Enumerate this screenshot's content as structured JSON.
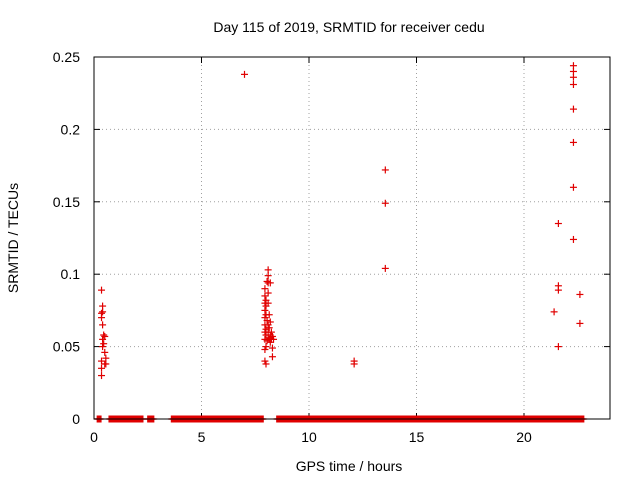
{
  "chart_data": {
    "type": "scatter",
    "title": "Day 115 of 2019, SRMTID for receiver cedu",
    "xlabel": "GPS time / hours",
    "ylabel": "SRMTID / TECUs",
    "xlim": [
      0,
      24
    ],
    "ylim": [
      0,
      0.25
    ],
    "x_ticks": [
      0,
      5,
      10,
      15,
      20
    ],
    "x_tick_labels": [
      "0",
      "5",
      "10",
      "15",
      "20"
    ],
    "y_ticks": [
      0,
      0.05,
      0.1,
      0.15,
      0.2,
      0.25
    ],
    "y_tick_labels": [
      "0",
      "0.05",
      "0.1",
      "0.15",
      "0.2",
      "0.25"
    ],
    "grid": true,
    "marker": "+",
    "series": [
      {
        "color": "#e00000",
        "points": [
          [
            0.35,
            0.089
          ],
          [
            0.35,
            0.073
          ],
          [
            0.35,
            0.07
          ],
          [
            0.35,
            0.04
          ],
          [
            0.35,
            0.035
          ],
          [
            0.35,
            0.03
          ],
          [
            0.4,
            0.078
          ],
          [
            0.4,
            0.074
          ],
          [
            0.4,
            0.065
          ],
          [
            0.4,
            0.055
          ],
          [
            0.4,
            0.05
          ],
          [
            0.45,
            0.058
          ],
          [
            0.45,
            0.052
          ],
          [
            0.5,
            0.057
          ],
          [
            0.5,
            0.046
          ],
          [
            0.5,
            0.038
          ],
          [
            0.55,
            0.042
          ],
          [
            0.55,
            0.038
          ],
          [
            7.0,
            0.238
          ],
          [
            7.95,
            0.09
          ],
          [
            7.95,
            0.085
          ],
          [
            7.95,
            0.08
          ],
          [
            7.95,
            0.075
          ],
          [
            7.95,
            0.07
          ],
          [
            7.95,
            0.065
          ],
          [
            7.95,
            0.06
          ],
          [
            7.95,
            0.055
          ],
          [
            7.95,
            0.048
          ],
          [
            7.95,
            0.04
          ],
          [
            8.0,
            0.082
          ],
          [
            8.0,
            0.078
          ],
          [
            8.0,
            0.072
          ],
          [
            8.0,
            0.062
          ],
          [
            8.0,
            0.058
          ],
          [
            8.0,
            0.05
          ],
          [
            8.0,
            0.038
          ],
          [
            8.05,
            0.095
          ],
          [
            8.05,
            0.068
          ],
          [
            8.05,
            0.054
          ],
          [
            8.1,
            0.103
          ],
          [
            8.1,
            0.099
          ],
          [
            8.1,
            0.094
          ],
          [
            8.1,
            0.087
          ],
          [
            8.1,
            0.08
          ],
          [
            8.1,
            0.065
          ],
          [
            8.1,
            0.06
          ],
          [
            8.1,
            0.056
          ],
          [
            8.15,
            0.072
          ],
          [
            8.15,
            0.063
          ],
          [
            8.15,
            0.055
          ],
          [
            8.2,
            0.094
          ],
          [
            8.2,
            0.067
          ],
          [
            8.2,
            0.058
          ],
          [
            8.2,
            0.053
          ],
          [
            8.25,
            0.06
          ],
          [
            8.25,
            0.055
          ],
          [
            8.3,
            0.057
          ],
          [
            8.3,
            0.049
          ],
          [
            8.3,
            0.043
          ],
          [
            8.35,
            0.055
          ],
          [
            12.1,
            0.04
          ],
          [
            12.1,
            0.038
          ],
          [
            13.55,
            0.172
          ],
          [
            13.55,
            0.149
          ],
          [
            13.55,
            0.104
          ],
          [
            21.4,
            0.074
          ],
          [
            21.6,
            0.135
          ],
          [
            21.6,
            0.092
          ],
          [
            21.6,
            0.089
          ],
          [
            21.6,
            0.05
          ],
          [
            22.3,
            0.244
          ],
          [
            22.3,
            0.24
          ],
          [
            22.3,
            0.236
          ],
          [
            22.3,
            0.231
          ],
          [
            22.3,
            0.214
          ],
          [
            22.3,
            0.191
          ],
          [
            22.3,
            0.16
          ],
          [
            22.3,
            0.124
          ],
          [
            22.6,
            0.086
          ],
          [
            22.6,
            0.066
          ]
        ],
        "zero_ranges": [
          [
            0.15,
            0.35
          ],
          [
            0.7,
            2.3
          ],
          [
            2.5,
            2.8
          ],
          [
            3.6,
            7.9
          ],
          [
            8.5,
            22.8
          ]
        ]
      }
    ]
  }
}
